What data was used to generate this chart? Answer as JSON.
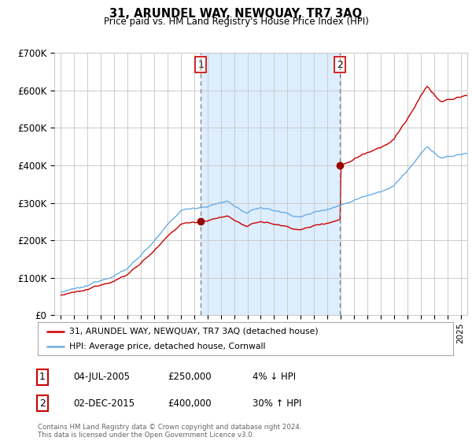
{
  "title": "31, ARUNDEL WAY, NEWQUAY, TR7 3AQ",
  "subtitle": "Price paid vs. HM Land Registry's House Price Index (HPI)",
  "background_color": "#ffffff",
  "grid_color": "#cccccc",
  "hpi_color": "#6aade4",
  "price_color": "#cc0000",
  "marker_color": "#990000",
  "shade_color": "#ddeeff",
  "ylim": [
    0,
    700000
  ],
  "yticks": [
    0,
    100000,
    200000,
    300000,
    400000,
    500000,
    600000,
    700000
  ],
  "ytick_labels": [
    "£0",
    "£100K",
    "£200K",
    "£300K",
    "£400K",
    "£500K",
    "£600K",
    "£700K"
  ],
  "purchase1_year": 2005.5,
  "purchase1_price": 250000,
  "purchase1_label": "1",
  "purchase2_year": 2015.92,
  "purchase2_price": 400000,
  "purchase2_label": "2",
  "legend_label1": "31, ARUNDEL WAY, NEWQUAY, TR7 3AQ (detached house)",
  "legend_label2": "HPI: Average price, detached house, Cornwall",
  "table_row1": [
    "1",
    "04-JUL-2005",
    "£250,000",
    "4% ↓ HPI"
  ],
  "table_row2": [
    "2",
    "02-DEC-2015",
    "£400,000",
    "30% ↑ HPI"
  ],
  "footer": "Contains HM Land Registry data © Crown copyright and database right 2024.\nThis data is licensed under the Open Government Licence v3.0.",
  "xmin": 1994.5,
  "xmax": 2025.5
}
